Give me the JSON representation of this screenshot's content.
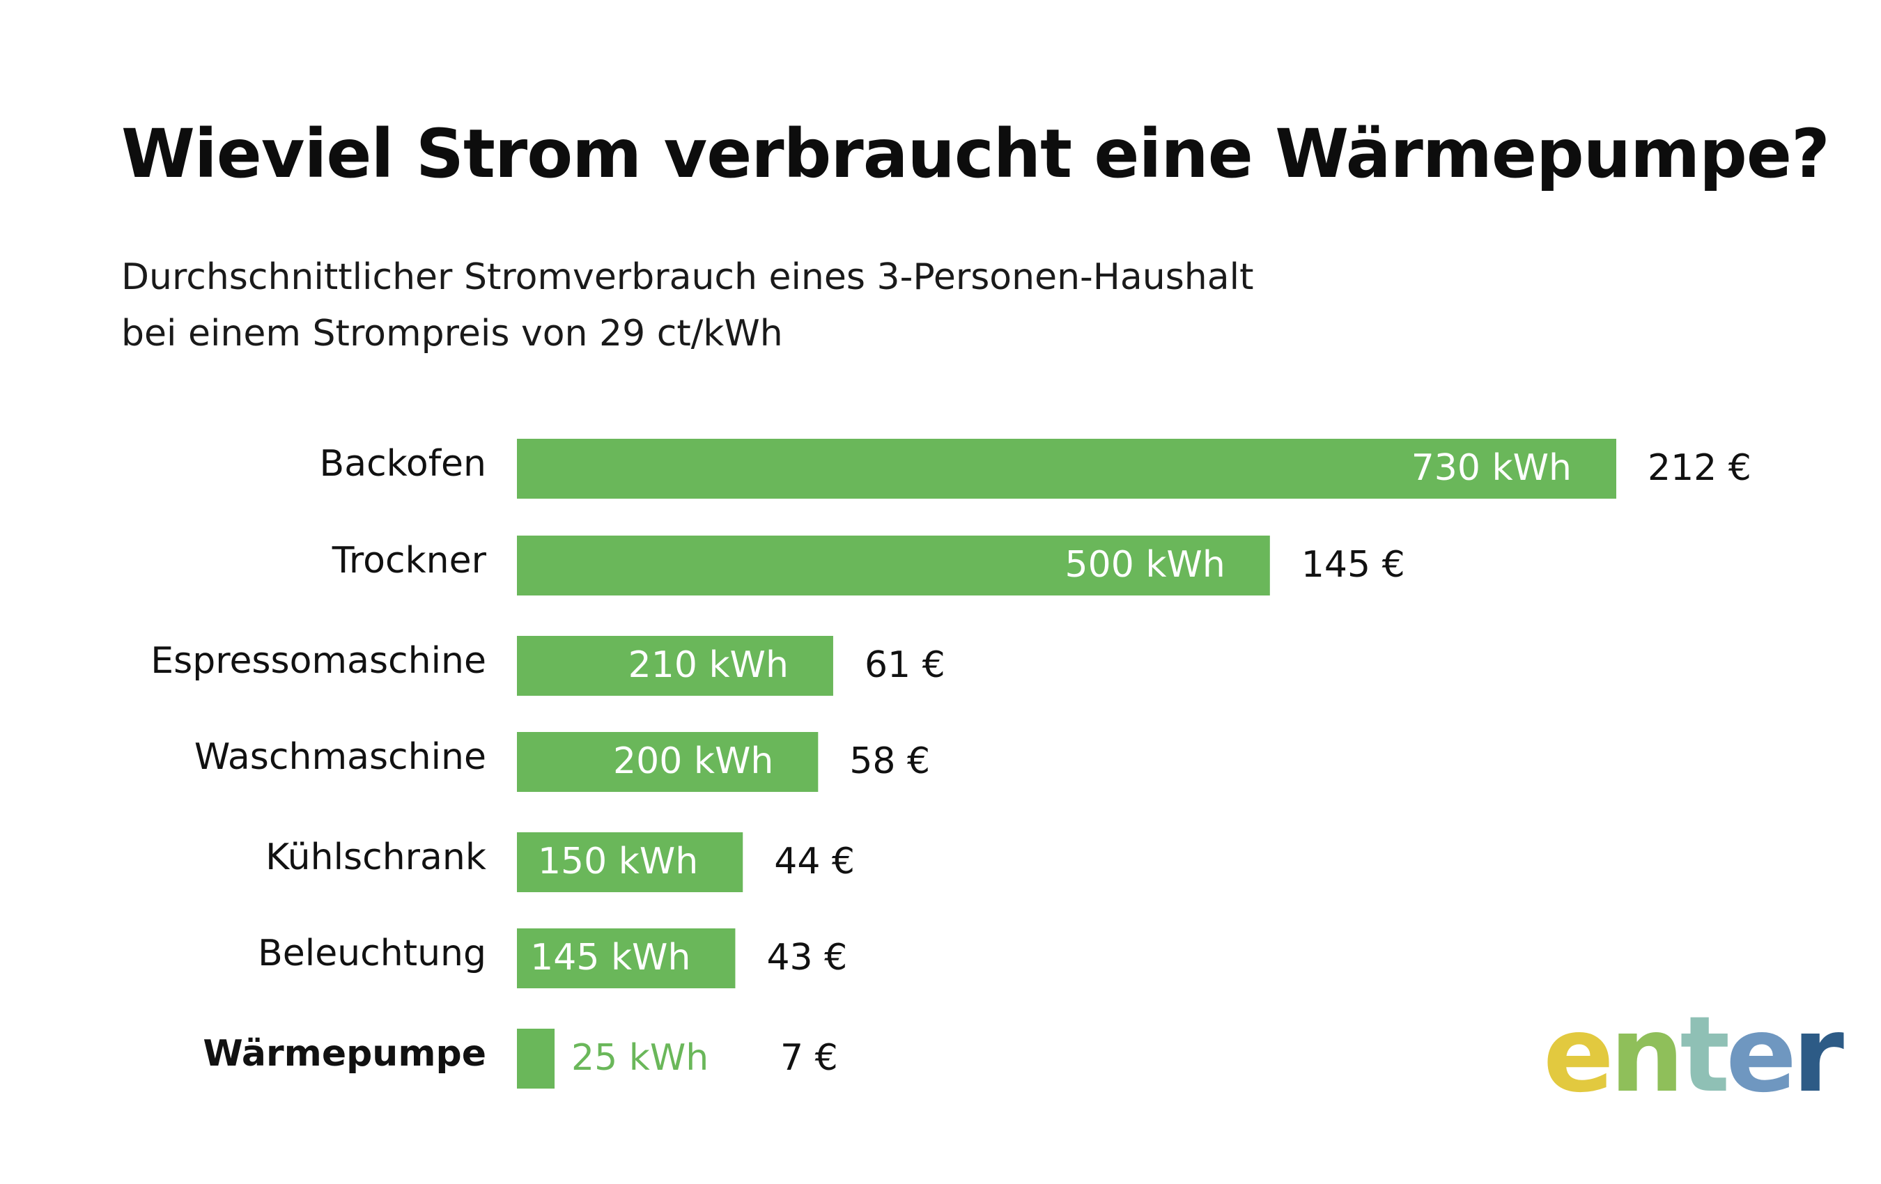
{
  "title": "Wieviel Strom verbraucht eine Wärmepumpe?",
  "subtitle_line1": "Durchschnittlicher Stromverbrauch eines 3-Personen-Haushalt",
  "subtitle_line2": "bei einem Strompreis von 29 ct/kWh",
  "colors": {
    "bar": "#6ab75a",
    "text": "#111111",
    "bar_text": "#ffffff"
  },
  "chart_data": {
    "type": "bar",
    "orientation": "horizontal",
    "categories": [
      "Backofen",
      "Trockner",
      "Espressomaschine",
      "Waschmaschine",
      "Kühlschrank",
      "Beleuchtung",
      "Wärmepumpe"
    ],
    "values": [
      730,
      500,
      210,
      200,
      150,
      145,
      25
    ],
    "value_labels": [
      "730 kWh",
      "500 kWh",
      "210 kWh",
      "200 kWh",
      "150 kWh",
      "145 kWh",
      "25 kWh"
    ],
    "cost_labels": [
      "212 €",
      "145 €",
      "61 €",
      "58 €",
      "44 €",
      "43 €",
      "7 €"
    ],
    "highlight_category": "Wärmepumpe",
    "unit": "kWh",
    "xlim": [
      0,
      730
    ],
    "grid": false,
    "legend": "none"
  },
  "logo": {
    "letters": [
      "e",
      "n",
      "t",
      "e",
      "r"
    ],
    "colors": [
      "#e2c93f",
      "#8fbf5a",
      "#8fc0b5",
      "#6f97c0",
      "#2d5b86"
    ]
  }
}
